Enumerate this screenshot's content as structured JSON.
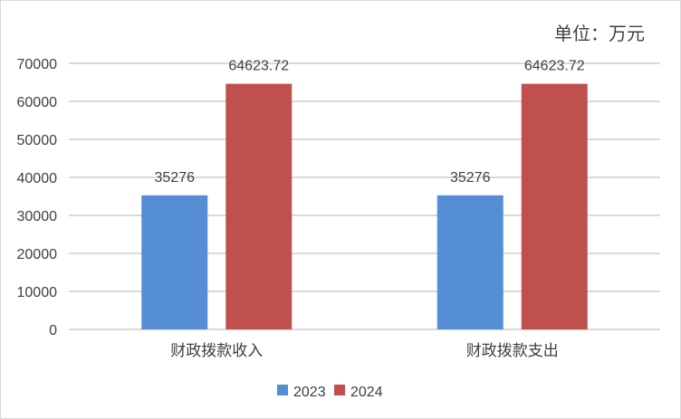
{
  "chart_data": {
    "type": "bar",
    "unit_label": "单位：万元",
    "categories": [
      "财政拨款收入",
      "财政拨款支出"
    ],
    "series": [
      {
        "name": "2023",
        "color": "#558ed5",
        "values": [
          35276,
          35276
        ],
        "labels": [
          "35276",
          "35276"
        ]
      },
      {
        "name": "2024",
        "color": "#c0504d",
        "values": [
          64623.72,
          64623.72
        ],
        "labels": [
          "64623.72",
          "64623.72"
        ]
      }
    ],
    "ylim": [
      0,
      70000
    ],
    "yticks": [
      0,
      10000,
      20000,
      30000,
      40000,
      50000,
      60000,
      70000
    ],
    "ytick_labels": [
      "0",
      "10000",
      "20000",
      "30000",
      "40000",
      "50000",
      "60000",
      "70000"
    ],
    "grid": true,
    "grid_color": "#d9d9d9",
    "legend_position": "bottom"
  }
}
